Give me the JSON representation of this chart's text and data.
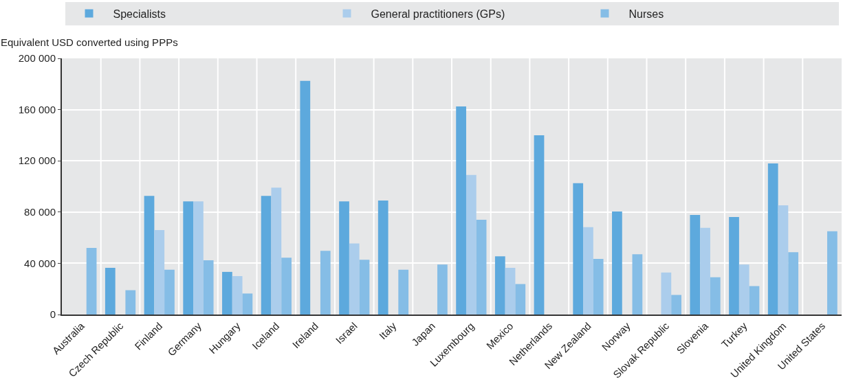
{
  "chart_data": {
    "type": "bar",
    "ylabel": "Equivalent USD converted using PPPs",
    "categories": [
      "Australia",
      "Czech Republic",
      "Finland",
      "Germany",
      "Hungary",
      "Iceland",
      "Ireland",
      "Israel",
      "Italy",
      "Japan",
      "Luxembourg",
      "Mexico",
      "Netherlands",
      "New Zealand",
      "Norway",
      "Slovak Republic",
      "Slovenia",
      "Turkey",
      "United Kingdom",
      "United States"
    ],
    "series": [
      {
        "name": "Specialists",
        "color": "#5da9dd",
        "values": [
          null,
          36500,
          92600,
          88300,
          33300,
          92600,
          182500,
          88300,
          89000,
          null,
          162400,
          45500,
          140000,
          102600,
          80400,
          null,
          77800,
          76200,
          118000,
          null
        ]
      },
      {
        "name": "General practitioners (GPs)",
        "color": "#abcdec",
        "values": [
          null,
          null,
          66000,
          88300,
          30000,
          99000,
          null,
          55500,
          null,
          null,
          109000,
          36500,
          null,
          68200,
          null,
          32800,
          67700,
          39000,
          85200,
          null
        ]
      },
      {
        "name": "Nurses",
        "color": "#85bde6",
        "values": [
          52000,
          19000,
          35000,
          42300,
          16400,
          44400,
          49700,
          42800,
          35000,
          39000,
          74000,
          23800,
          null,
          43400,
          47000,
          15300,
          29100,
          22200,
          48700,
          65000
        ]
      }
    ],
    "ylim": [
      0,
      200000
    ],
    "yticks": [
      {
        "value": 0,
        "label": "0"
      },
      {
        "value": 40000,
        "label": "40 000"
      },
      {
        "value": 80000,
        "label": "80 000"
      },
      {
        "value": 120000,
        "label": "120 000"
      },
      {
        "value": 160000,
        "label": "160 000"
      },
      {
        "value": 200000,
        "label": "200 000"
      }
    ],
    "grid": true,
    "legend": "top"
  }
}
